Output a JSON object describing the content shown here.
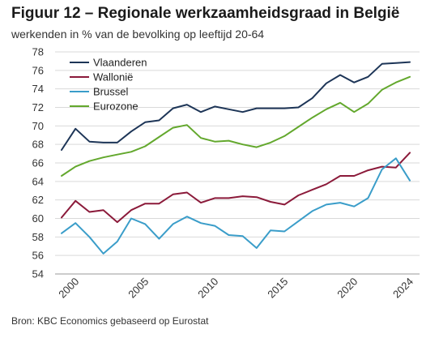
{
  "header": {
    "title": "Figuur 12 – Regionale werkzaamheidsgraad in België",
    "subtitle": "werkenden in % van de bevolking op leeftijd 20-64"
  },
  "footer": {
    "source": "Bron: KBC Economics gebaseerd op Eurostat"
  },
  "colors": {
    "Vlaanderen": "#1d3557",
    "Wallonië": "#8b1a3a",
    "Brussel": "#3a9dc9",
    "Eurozone": "#63a82d"
  },
  "chart_data": {
    "type": "line",
    "title": "Figuur 12 – Regionale werkzaamheidsgraad in België",
    "subtitle": "werkenden in % van de bevolking op leeftijd 20-64",
    "xlabel": "",
    "ylabel": "",
    "x": [
      1999,
      2000,
      2001,
      2002,
      2003,
      2004,
      2005,
      2006,
      2007,
      2008,
      2009,
      2010,
      2011,
      2012,
      2013,
      2014,
      2015,
      2016,
      2017,
      2018,
      2019,
      2020,
      2021,
      2022,
      2023,
      2024
    ],
    "x_ticks": [
      2000,
      2005,
      2010,
      2015,
      2020,
      2024
    ],
    "ylim": [
      54,
      78
    ],
    "y_ticks": [
      54,
      56,
      58,
      60,
      62,
      64,
      66,
      68,
      70,
      72,
      74,
      76,
      78
    ],
    "grid": "horizontal",
    "legend_position": "top-left",
    "series": [
      {
        "name": "Vlaanderen",
        "values": [
          67.4,
          69.7,
          68.3,
          68.2,
          68.2,
          69.4,
          70.4,
          70.6,
          71.9,
          72.3,
          71.5,
          72.1,
          71.8,
          71.5,
          71.9,
          71.9,
          71.9,
          72.0,
          73.0,
          74.6,
          75.5,
          74.7,
          75.3,
          76.7,
          76.8,
          76.9
        ]
      },
      {
        "name": "Wallonië",
        "values": [
          60.1,
          61.9,
          60.7,
          60.9,
          59.6,
          60.9,
          61.6,
          61.6,
          62.6,
          62.8,
          61.7,
          62.2,
          62.2,
          62.4,
          62.3,
          61.8,
          61.5,
          62.5,
          63.1,
          63.7,
          64.6,
          64.6,
          65.2,
          65.6,
          65.5,
          67.1
        ]
      },
      {
        "name": "Brussel",
        "values": [
          58.4,
          59.5,
          58.0,
          56.2,
          57.5,
          60.0,
          59.4,
          57.8,
          59.4,
          60.2,
          59.5,
          59.2,
          58.2,
          58.1,
          56.8,
          58.7,
          58.6,
          59.7,
          60.8,
          61.5,
          61.7,
          61.3,
          62.2,
          65.3,
          66.5,
          64.1
        ]
      },
      {
        "name": "Eurozone",
        "values": [
          64.6,
          65.6,
          66.2,
          66.6,
          66.9,
          67.2,
          67.8,
          68.8,
          69.8,
          70.1,
          68.7,
          68.3,
          68.4,
          68.0,
          67.7,
          68.2,
          68.9,
          69.9,
          70.9,
          71.8,
          72.5,
          71.5,
          72.4,
          73.9,
          74.7,
          75.3
        ]
      }
    ]
  }
}
